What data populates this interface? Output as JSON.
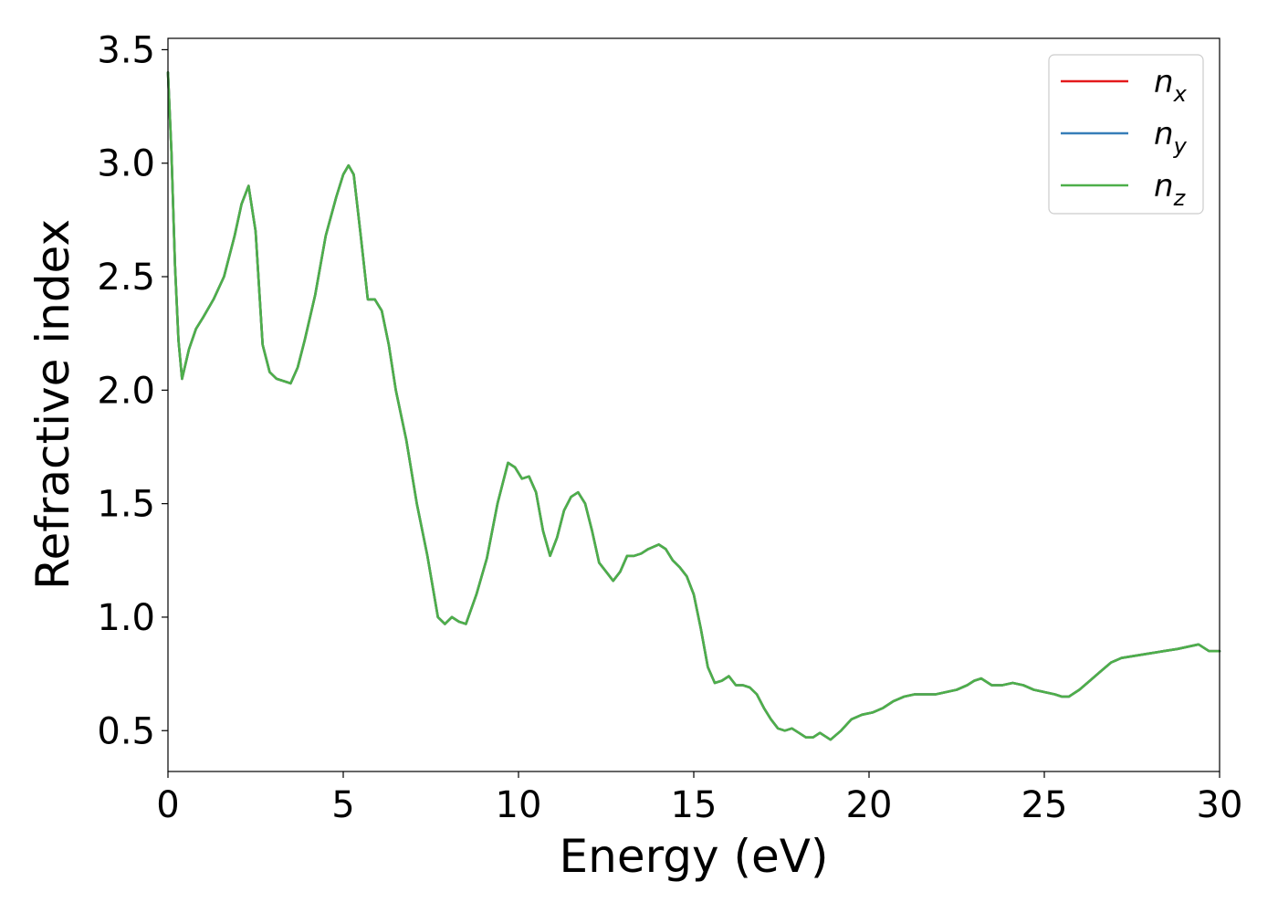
{
  "chart_data": {
    "type": "line",
    "title": "",
    "xlabel": "Energy (eV)",
    "ylabel": "Refractive index",
    "xlim": [
      0,
      30
    ],
    "ylim": [
      0.32,
      3.55
    ],
    "xticks": [
      0,
      5,
      10,
      15,
      20,
      25,
      30
    ],
    "yticks": [
      0.5,
      1.0,
      1.5,
      2.0,
      2.5,
      3.0,
      3.5
    ],
    "grid": false,
    "legend_position": "top-right",
    "x": [
      0,
      0.1,
      0.2,
      0.3,
      0.4,
      0.6,
      0.8,
      1.0,
      1.3,
      1.6,
      1.9,
      2.1,
      2.3,
      2.5,
      2.7,
      2.9,
      3.1,
      3.3,
      3.5,
      3.7,
      3.9,
      4.2,
      4.5,
      4.8,
      5.0,
      5.15,
      5.3,
      5.5,
      5.7,
      5.9,
      6.1,
      6.3,
      6.5,
      6.8,
      7.1,
      7.4,
      7.7,
      7.9,
      8.1,
      8.3,
      8.5,
      8.8,
      9.1,
      9.4,
      9.7,
      9.9,
      10.1,
      10.3,
      10.5,
      10.7,
      10.9,
      11.1,
      11.3,
      11.5,
      11.7,
      11.9,
      12.1,
      12.3,
      12.5,
      12.7,
      12.9,
      13.1,
      13.3,
      13.5,
      13.7,
      14.0,
      14.2,
      14.4,
      14.6,
      14.8,
      15.0,
      15.2,
      15.4,
      15.6,
      15.8,
      16.0,
      16.2,
      16.4,
      16.6,
      16.8,
      17.0,
      17.2,
      17.4,
      17.6,
      17.8,
      18.0,
      18.2,
      18.4,
      18.6,
      18.9,
      19.2,
      19.5,
      19.8,
      20.1,
      20.4,
      20.7,
      21.0,
      21.3,
      21.6,
      21.9,
      22.2,
      22.5,
      22.8,
      23.0,
      23.2,
      23.5,
      23.8,
      24.1,
      24.4,
      24.7,
      25.0,
      25.3,
      25.5,
      25.7,
      26.0,
      26.3,
      26.6,
      26.9,
      27.2,
      27.6,
      28.0,
      28.4,
      28.8,
      29.1,
      29.4,
      29.7,
      30.0
    ],
    "series": [
      {
        "name": "n_x",
        "color": "#e41a1c",
        "values": [
          3.4,
          3.05,
          2.55,
          2.22,
          2.05,
          2.18,
          2.27,
          2.32,
          2.4,
          2.5,
          2.68,
          2.82,
          2.9,
          2.7,
          2.2,
          2.08,
          2.05,
          2.04,
          2.03,
          2.1,
          2.22,
          2.42,
          2.68,
          2.85,
          2.95,
          2.99,
          2.95,
          2.68,
          2.4,
          2.4,
          2.35,
          2.2,
          2.0,
          1.78,
          1.5,
          1.27,
          1.0,
          0.97,
          1.0,
          0.98,
          0.97,
          1.1,
          1.26,
          1.5,
          1.68,
          1.66,
          1.61,
          1.62,
          1.55,
          1.38,
          1.27,
          1.35,
          1.47,
          1.53,
          1.55,
          1.5,
          1.38,
          1.24,
          1.2,
          1.16,
          1.2,
          1.27,
          1.27,
          1.28,
          1.3,
          1.32,
          1.3,
          1.25,
          1.22,
          1.18,
          1.1,
          0.95,
          0.78,
          0.71,
          0.72,
          0.74,
          0.7,
          0.7,
          0.69,
          0.66,
          0.6,
          0.55,
          0.51,
          0.5,
          0.51,
          0.49,
          0.47,
          0.47,
          0.49,
          0.46,
          0.5,
          0.55,
          0.57,
          0.58,
          0.6,
          0.63,
          0.65,
          0.66,
          0.66,
          0.66,
          0.67,
          0.68,
          0.7,
          0.72,
          0.73,
          0.7,
          0.7,
          0.71,
          0.7,
          0.68,
          0.67,
          0.66,
          0.65,
          0.65,
          0.68,
          0.72,
          0.76,
          0.8,
          0.82,
          0.83,
          0.84,
          0.85,
          0.86,
          0.87,
          0.88,
          0.85,
          0.85
        ]
      },
      {
        "name": "n_y",
        "color": "#377eb8",
        "values": [
          3.4,
          3.05,
          2.55,
          2.22,
          2.05,
          2.18,
          2.27,
          2.32,
          2.4,
          2.5,
          2.68,
          2.82,
          2.9,
          2.7,
          2.2,
          2.08,
          2.05,
          2.04,
          2.03,
          2.1,
          2.22,
          2.42,
          2.68,
          2.85,
          2.95,
          2.99,
          2.95,
          2.68,
          2.4,
          2.4,
          2.35,
          2.2,
          2.0,
          1.78,
          1.5,
          1.27,
          1.0,
          0.97,
          1.0,
          0.98,
          0.97,
          1.1,
          1.26,
          1.5,
          1.68,
          1.66,
          1.61,
          1.62,
          1.55,
          1.38,
          1.27,
          1.35,
          1.47,
          1.53,
          1.55,
          1.5,
          1.38,
          1.24,
          1.2,
          1.16,
          1.2,
          1.27,
          1.27,
          1.28,
          1.3,
          1.32,
          1.3,
          1.25,
          1.22,
          1.18,
          1.1,
          0.95,
          0.78,
          0.71,
          0.72,
          0.74,
          0.7,
          0.7,
          0.69,
          0.66,
          0.6,
          0.55,
          0.51,
          0.5,
          0.51,
          0.49,
          0.47,
          0.47,
          0.49,
          0.46,
          0.5,
          0.55,
          0.57,
          0.58,
          0.6,
          0.63,
          0.65,
          0.66,
          0.66,
          0.66,
          0.67,
          0.68,
          0.7,
          0.72,
          0.73,
          0.7,
          0.7,
          0.71,
          0.7,
          0.68,
          0.67,
          0.66,
          0.65,
          0.65,
          0.68,
          0.72,
          0.76,
          0.8,
          0.82,
          0.83,
          0.84,
          0.85,
          0.86,
          0.87,
          0.88,
          0.85,
          0.85
        ]
      },
      {
        "name": "n_z",
        "color": "#4daf4a",
        "values": [
          3.4,
          3.05,
          2.55,
          2.22,
          2.05,
          2.18,
          2.27,
          2.32,
          2.4,
          2.5,
          2.68,
          2.82,
          2.9,
          2.7,
          2.2,
          2.08,
          2.05,
          2.04,
          2.03,
          2.1,
          2.22,
          2.42,
          2.68,
          2.85,
          2.95,
          2.99,
          2.95,
          2.68,
          2.4,
          2.4,
          2.35,
          2.2,
          2.0,
          1.78,
          1.5,
          1.27,
          1.0,
          0.97,
          1.0,
          0.98,
          0.97,
          1.1,
          1.26,
          1.5,
          1.68,
          1.66,
          1.61,
          1.62,
          1.55,
          1.38,
          1.27,
          1.35,
          1.47,
          1.53,
          1.55,
          1.5,
          1.38,
          1.24,
          1.2,
          1.16,
          1.2,
          1.27,
          1.27,
          1.28,
          1.3,
          1.32,
          1.3,
          1.25,
          1.22,
          1.18,
          1.1,
          0.95,
          0.78,
          0.71,
          0.72,
          0.74,
          0.7,
          0.7,
          0.69,
          0.66,
          0.6,
          0.55,
          0.51,
          0.5,
          0.51,
          0.49,
          0.47,
          0.47,
          0.49,
          0.46,
          0.5,
          0.55,
          0.57,
          0.58,
          0.6,
          0.63,
          0.65,
          0.66,
          0.66,
          0.66,
          0.67,
          0.68,
          0.7,
          0.72,
          0.73,
          0.7,
          0.7,
          0.71,
          0.7,
          0.68,
          0.67,
          0.66,
          0.65,
          0.65,
          0.68,
          0.72,
          0.76,
          0.8,
          0.82,
          0.83,
          0.84,
          0.85,
          0.86,
          0.87,
          0.88,
          0.85,
          0.85
        ]
      }
    ],
    "legend": [
      {
        "base": "n",
        "sub": "x"
      },
      {
        "base": "n",
        "sub": "y"
      },
      {
        "base": "n",
        "sub": "z"
      }
    ]
  }
}
